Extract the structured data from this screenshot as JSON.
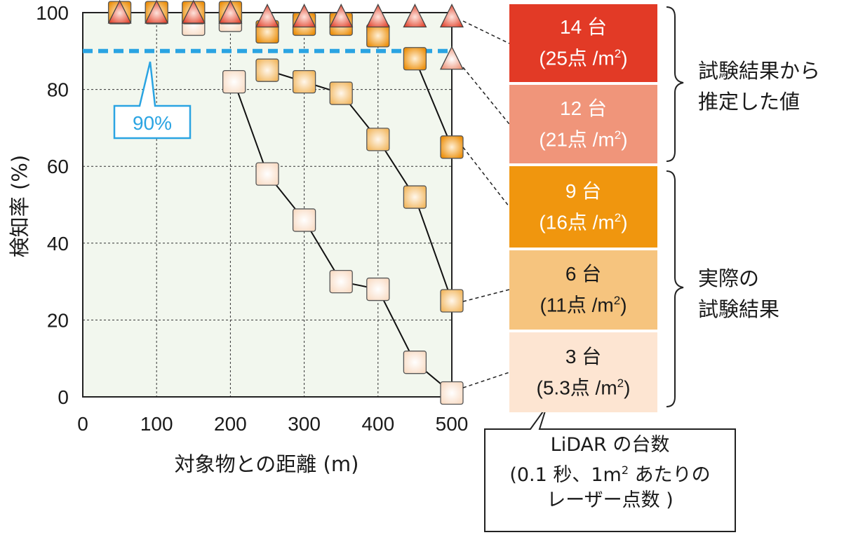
{
  "chart_data": {
    "type": "scatter",
    "xlabel": "対象物との距離 (m)",
    "ylabel": "検知率 (%)",
    "xlim": [
      0,
      500
    ],
    "ylim": [
      0,
      100
    ],
    "xticks": [
      "0",
      "100",
      "200",
      "300",
      "400",
      "500"
    ],
    "yticks": [
      "0",
      "20",
      "40",
      "60",
      "80",
      "100"
    ],
    "grid": true,
    "legend_position": "right",
    "threshold": {
      "value": 90,
      "label": "90%"
    },
    "series": [
      {
        "name": "14 台",
        "sublabel": "(25点 /m",
        "marker": "triangle",
        "color": "#e8402b",
        "source": "試験結果から推定した値",
        "points": [
          [
            50,
            100
          ],
          [
            100,
            100
          ],
          [
            150,
            100
          ],
          [
            200,
            100
          ],
          [
            250,
            99
          ],
          [
            300,
            99
          ],
          [
            350,
            99
          ],
          [
            400,
            99
          ],
          [
            450,
            99
          ],
          [
            500,
            99
          ]
        ]
      },
      {
        "name": "12 台",
        "sublabel": "(21点 /m",
        "marker": "triangle",
        "color": "#f0957a",
        "source": "試験結果から推定した値",
        "points": [
          [
            500,
            88
          ]
        ]
      },
      {
        "name": "9 台",
        "sublabel": "(16点 /m",
        "marker": "square",
        "color": "#f0960e",
        "source": "実際の試験結果",
        "points": [
          [
            50,
            100
          ],
          [
            100,
            100
          ],
          [
            150,
            100
          ],
          [
            200,
            100
          ],
          [
            250,
            95
          ],
          [
            300,
            97
          ],
          [
            350,
            97
          ],
          [
            400,
            94
          ],
          [
            450,
            88
          ],
          [
            500,
            65
          ]
        ]
      },
      {
        "name": "6 台",
        "sublabel": "(11点 /m",
        "marker": "square",
        "color": "#f6c47e",
        "source": "実際の試験結果",
        "points": [
          [
            250,
            85
          ],
          [
            300,
            82
          ],
          [
            350,
            79
          ],
          [
            400,
            67
          ],
          [
            450,
            52
          ],
          [
            500,
            25
          ]
        ]
      },
      {
        "name": "3 台",
        "sublabel": "(5.3点 /m",
        "marker": "square",
        "color": "#fde5d2",
        "source": "実際の試験結果",
        "points": [
          [
            150,
            97
          ],
          [
            200,
            98
          ],
          [
            205,
            82
          ],
          [
            250,
            58
          ],
          [
            300,
            46
          ],
          [
            350,
            30
          ],
          [
            400,
            28
          ],
          [
            450,
            9
          ],
          [
            500,
            1
          ]
        ]
      }
    ],
    "legend_title": "LiDAR の台数",
    "legend_subtitle_a": "(0.1 秒、1m",
    "legend_subtitle_b": " あたりの",
    "legend_subtitle_c": "レーザー点数 )",
    "unit_superscript": "2",
    "unit_close": ")"
  },
  "groups": {
    "estimated_line1": "試験結果から",
    "estimated_line2": "推定した値",
    "actual_line1": "実際の",
    "actual_line2": "試験結果"
  },
  "colors": {
    "plot_background": "#f2f7ee",
    "threshold": "#2aa4e2",
    "grid": "#333333"
  }
}
